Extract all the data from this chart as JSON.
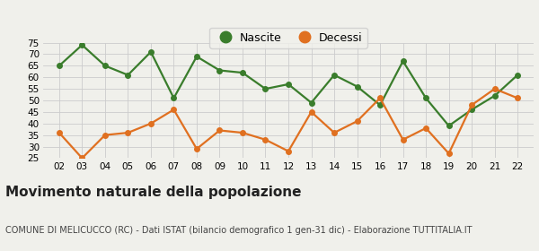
{
  "years": [
    2,
    3,
    4,
    5,
    6,
    7,
    8,
    9,
    10,
    11,
    12,
    13,
    14,
    15,
    16,
    17,
    18,
    19,
    20,
    21,
    22
  ],
  "nascite": [
    65,
    74,
    65,
    61,
    71,
    51,
    69,
    63,
    62,
    55,
    57,
    49,
    61,
    56,
    48,
    67,
    51,
    39,
    46,
    52,
    61
  ],
  "decessi": [
    36,
    25,
    35,
    36,
    40,
    46,
    29,
    37,
    36,
    33,
    28,
    45,
    36,
    41,
    51,
    33,
    38,
    27,
    48,
    55,
    51
  ],
  "nascite_color": "#3a7d2c",
  "decessi_color": "#e07020",
  "background_color": "#f0f0eb",
  "grid_color": "#cccccc",
  "ylim": [
    25,
    75
  ],
  "yticks": [
    25,
    30,
    35,
    40,
    45,
    50,
    55,
    60,
    65,
    70,
    75
  ],
  "title": "Movimento naturale della popolazione",
  "subtitle": "COMUNE DI MELICUCCO (RC) - Dati ISTAT (bilancio demografico 1 gen-31 dic) - Elaborazione TUTTITALIA.IT",
  "legend_nascite": "Nascite",
  "legend_decessi": "Decessi",
  "title_fontsize": 11,
  "subtitle_fontsize": 7,
  "marker_size": 4,
  "line_width": 1.6
}
